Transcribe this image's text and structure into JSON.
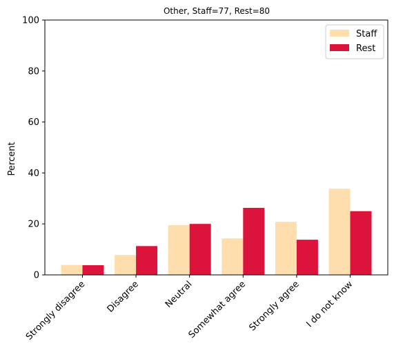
{
  "chart_data": {
    "type": "bar",
    "title": "Other, Staff=77, Rest=80",
    "xlabel": "",
    "ylabel": "Percent",
    "ylim": [
      0,
      100
    ],
    "yticks": [
      0,
      20,
      40,
      60,
      80,
      100
    ],
    "categories": [
      "Strongly disagree",
      "Disagree",
      "Neutral",
      "Somewhat agree",
      "Strongly agree",
      "I do not know"
    ],
    "series": [
      {
        "name": "Staff",
        "color": "#FFDEAD",
        "values": [
          3.9,
          7.8,
          19.5,
          14.3,
          20.8,
          33.8
        ]
      },
      {
        "name": "Rest",
        "color": "#DC143C",
        "values": [
          3.8,
          11.3,
          20.0,
          26.3,
          13.8,
          25.0
        ]
      }
    ],
    "legend_position": "top-right",
    "grid": false
  }
}
